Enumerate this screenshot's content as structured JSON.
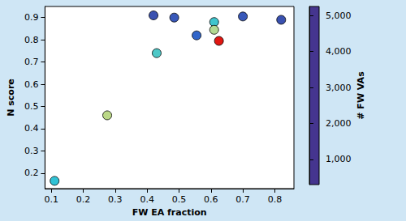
{
  "chart_data": {
    "type": "scatter",
    "x_label": "FW EA fraction",
    "y_label": "N score",
    "x": [
      0.11,
      0.275,
      0.43,
      0.42,
      0.485,
      0.555,
      0.61,
      0.61,
      0.625,
      0.7,
      0.82
    ],
    "values": [
      0.165,
      0.46,
      0.74,
      0.91,
      0.9,
      0.82,
      0.88,
      0.845,
      0.795,
      0.905,
      0.89
    ],
    "color_values": [
      2000,
      3000,
      2200,
      700,
      800,
      1000,
      2100,
      2900,
      5200,
      800,
      700
    ],
    "xlim": [
      0.08,
      0.86
    ],
    "xticks": [
      0.1,
      0.2,
      0.3,
      0.4,
      0.5,
      0.6,
      0.7,
      0.8
    ],
    "ylim": [
      0.13,
      0.95
    ],
    "yticks": [
      0.2,
      0.3,
      0.4,
      0.5,
      0.6,
      0.7,
      0.8,
      0.9
    ],
    "colorbar_label": "# FW VAs",
    "colorbar_range": [
      300,
      5250
    ],
    "colorbar_ticks": [
      1000,
      2000,
      3000,
      4000,
      5000
    ],
    "marker": "circle",
    "grid": false
  }
}
